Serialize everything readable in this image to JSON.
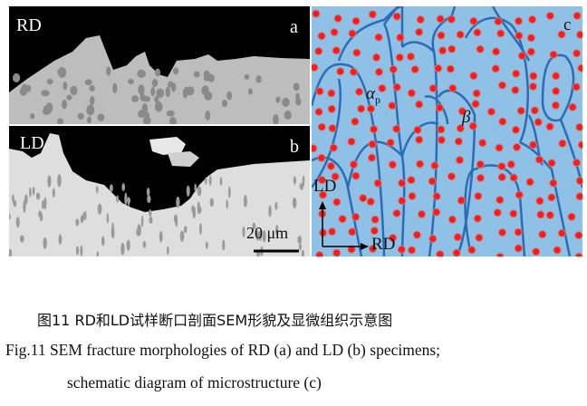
{
  "figure": {
    "panel_a": {
      "direction_label": "RD",
      "panel_letter": "a"
    },
    "panel_b": {
      "direction_label": "LD",
      "panel_letter": "b",
      "scale_bar": "20 μm"
    },
    "panel_c": {
      "panel_letter": "c",
      "phase_alpha": "α",
      "phase_alpha_sub": "p",
      "phase_beta": "β",
      "axis_vertical": "LD",
      "axis_horizontal": "RD"
    },
    "colors": {
      "matrix_blue": "#8fc1e6",
      "grain_boundary": "#2a6db5",
      "alpha_particle": "#ff1a1a"
    }
  },
  "caption": {
    "cn": "图11  RD和LD试样断口剖面SEM形貌及显微组织示意图",
    "en_line1": "Fig.11  SEM fracture morphologies of RD (a) and LD (b) specimens;",
    "en_line2": "schematic diagram of microstructure (c)"
  }
}
